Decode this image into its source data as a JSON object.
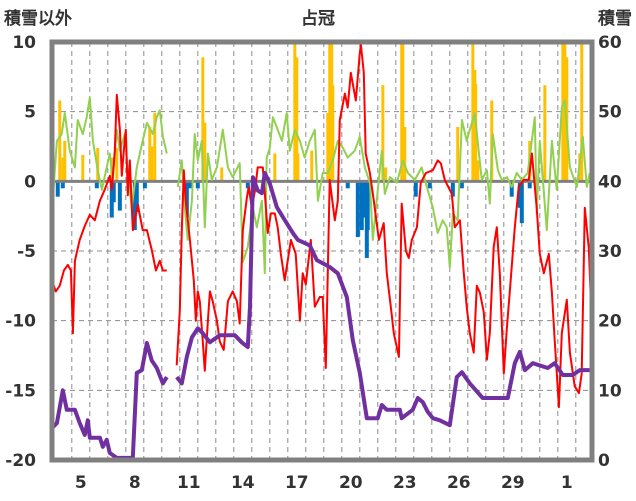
{
  "chart_data": {
    "type": "line",
    "title": "占冠",
    "ylabel": "積雪以外",
    "y2label": "積雪",
    "xlim": [
      3.4,
      33.4
    ],
    "ylim": [
      -20,
      10
    ],
    "y2lim": [
      0,
      60
    ],
    "grid": true,
    "y_ticks": [
      10,
      5,
      0,
      -5,
      -10,
      -15,
      -20
    ],
    "y2_ticks": [
      60,
      50,
      40,
      30,
      20,
      10,
      0
    ],
    "x_ticks": [
      {
        "day": 5,
        "label": "5"
      },
      {
        "day": 8,
        "label": "8"
      },
      {
        "day": 11,
        "label": "11"
      },
      {
        "day": 14,
        "label": "14"
      },
      {
        "day": 17,
        "label": "17"
      },
      {
        "day": 20,
        "label": "20"
      },
      {
        "day": 23,
        "label": "23"
      },
      {
        "day": 26,
        "label": "26"
      },
      {
        "day": 29,
        "label": "29"
      },
      {
        "day": 32,
        "label": "1"
      }
    ],
    "colors": {
      "red": "#FF0000",
      "green": "#92D050",
      "purple": "#7030A0",
      "orange": "#FFC000",
      "blue": "#0070C0",
      "frame": "#808080"
    },
    "bars_orange": [
      [
        3.83,
        5.8
      ],
      [
        4.0,
        1.7
      ],
      [
        4.11,
        2.9
      ],
      [
        5.11,
        1.9
      ],
      [
        5.94,
        2.4
      ],
      [
        6.72,
        1.7
      ],
      [
        7.0,
        2.4
      ],
      [
        8.83,
        3.9
      ],
      [
        8.94,
        2.5
      ],
      [
        9.11,
        4.9
      ],
      [
        11.78,
        8.9
      ],
      [
        11.89,
        4.2
      ],
      [
        12.83,
        1.0
      ],
      [
        15.78,
        2.0
      ],
      [
        16.89,
        9.9
      ],
      [
        17.0,
        8.9
      ],
      [
        17.06,
        2.0
      ],
      [
        17.83,
        2.2
      ],
      [
        18.72,
        4.9
      ],
      [
        18.83,
        9.9
      ],
      [
        18.94,
        9.9
      ],
      [
        19.0,
        6.9
      ],
      [
        21.78,
        6.9
      ],
      [
        21.94,
        1.0
      ],
      [
        22.83,
        9.9
      ],
      [
        22.89,
        9.9
      ],
      [
        23.0,
        3.9
      ],
      [
        25.94,
        3.9
      ],
      [
        26.78,
        9.9
      ],
      [
        26.89,
        8.0
      ],
      [
        26.94,
        7.0
      ],
      [
        27.06,
        1.5
      ],
      [
        27.83,
        5.8
      ],
      [
        29.94,
        2.9
      ],
      [
        30.78,
        6.9
      ],
      [
        31.78,
        9.9
      ],
      [
        31.89,
        9.9
      ],
      [
        32.0,
        8.9
      ],
      [
        32.72,
        2.0
      ],
      [
        32.83,
        9.9
      ]
    ],
    "bars_blue": [
      [
        3.72,
        -1.1
      ],
      [
        4.0,
        -0.5
      ],
      [
        5.89,
        -0.5
      ],
      [
        6.72,
        -2.6
      ],
      [
        6.83,
        -1.5
      ],
      [
        7.17,
        -2.1
      ],
      [
        8.0,
        -3.5
      ],
      [
        8.11,
        -2.2
      ],
      [
        8.56,
        -0.5
      ],
      [
        10.89,
        -2.6
      ],
      [
        11.06,
        -0.5
      ],
      [
        11.5,
        -0.5
      ],
      [
        14.28,
        -0.5
      ],
      [
        19.83,
        -0.5
      ],
      [
        20.39,
        -4.0
      ],
      [
        20.61,
        -3.5
      ],
      [
        20.72,
        -2.6
      ],
      [
        20.89,
        -5.5
      ],
      [
        20.94,
        -3.5
      ],
      [
        23.61,
        -1.1
      ],
      [
        24.39,
        -0.5
      ],
      [
        25.67,
        -1.1
      ],
      [
        26.17,
        -0.5
      ],
      [
        28.94,
        -1.1
      ],
      [
        29.39,
        -1.9
      ],
      [
        29.5,
        -3.0
      ],
      [
        29.94,
        -0.5
      ]
    ],
    "line_green": [
      [
        3.44,
        -1.4
      ],
      [
        3.67,
        2.9
      ],
      [
        3.94,
        3.4
      ],
      [
        4.11,
        4.9
      ],
      [
        4.39,
        2.2
      ],
      [
        4.67,
        1.0
      ],
      [
        4.83,
        4.4
      ],
      [
        5.11,
        3.4
      ],
      [
        5.33,
        4.6
      ],
      [
        5.5,
        6.0
      ],
      [
        5.67,
        2.9
      ],
      [
        5.94,
        0.8
      ],
      [
        6.17,
        -0.6
      ],
      [
        6.44,
        1.0
      ],
      [
        6.61,
        2.0
      ],
      [
        6.78,
        0.1
      ],
      [
        7.0,
        3.7
      ],
      [
        7.17,
        2.2
      ],
      [
        7.44,
        3.4
      ],
      [
        7.61,
        0.6
      ],
      [
        7.83,
        -1.9
      ],
      [
        8.11,
        1.0
      ],
      [
        8.28,
        2.0
      ],
      [
        8.67,
        4.2
      ],
      [
        9.0,
        3.4
      ],
      [
        9.22,
        4.6
      ],
      [
        9.39,
        5.1
      ],
      [
        9.56,
        3.2
      ],
      [
        9.78,
        2.0
      ],
      null,
      [
        10.39,
        -0.4
      ],
      [
        10.61,
        1.5
      ],
      [
        10.78,
        -1.9
      ],
      [
        10.94,
        -4.2
      ],
      [
        11.17,
        -1.4
      ],
      [
        11.33,
        3.4
      ],
      [
        11.5,
        1.5
      ],
      [
        11.72,
        2.9
      ],
      [
        11.89,
        -3.3
      ],
      [
        12.06,
        2.0
      ],
      [
        12.28,
        0.1
      ],
      [
        12.56,
        1.0
      ],
      [
        12.89,
        3.7
      ],
      [
        13.17,
        1.0
      ],
      [
        13.44,
        0.3
      ],
      [
        13.83,
        1.3
      ],
      [
        14.0,
        -5.8
      ],
      [
        14.28,
        -4.7
      ],
      [
        14.56,
        -1.9
      ],
      [
        14.78,
        -3.3
      ],
      [
        15.06,
        -1.4
      ],
      [
        15.22,
        -6.6
      ],
      [
        15.33,
        1.7
      ],
      [
        15.5,
        2.4
      ],
      [
        15.67,
        4.6
      ],
      [
        15.94,
        3.7
      ],
      [
        16.17,
        2.9
      ],
      [
        16.44,
        4.9
      ],
      [
        16.61,
        2.2
      ],
      [
        16.89,
        3.7
      ],
      [
        17.17,
        2.9
      ],
      [
        17.44,
        1.7
      ],
      [
        17.72,
        2.9
      ],
      [
        18.0,
        3.7
      ],
      [
        18.17,
        -1.4
      ],
      [
        18.44,
        0.6
      ],
      [
        18.72,
        0.6
      ],
      [
        19.0,
        1.5
      ],
      [
        19.28,
        2.9
      ],
      [
        19.56,
        2.4
      ],
      [
        19.83,
        1.7
      ],
      [
        20.22,
        2.2
      ],
      [
        20.5,
        3.2
      ],
      [
        20.78,
        1.0
      ],
      [
        21.06,
        -0.1
      ],
      [
        21.22,
        -4.2
      ],
      [
        21.44,
        -1.4
      ],
      [
        21.72,
        2.2
      ],
      [
        21.89,
        -0.9
      ],
      [
        22.17,
        0.3
      ],
      [
        22.56,
        -0.1
      ],
      [
        22.89,
        1.5
      ],
      [
        23.17,
        0.6
      ],
      [
        23.56,
        0.1
      ],
      [
        23.94,
        1.0
      ],
      [
        24.22,
        -0.4
      ],
      [
        24.56,
        -1.9
      ],
      [
        24.83,
        -3.7
      ],
      [
        25.11,
        -2.8
      ],
      [
        25.33,
        -3.3
      ],
      [
        25.5,
        -6.2
      ],
      [
        25.67,
        -2.3
      ],
      [
        25.94,
        -2.8
      ],
      [
        26.17,
        4.4
      ],
      [
        26.44,
        2.9
      ],
      [
        26.61,
        3.7
      ],
      [
        26.89,
        4.9
      ],
      [
        27.06,
        2.7
      ],
      [
        27.28,
        0.1
      ],
      [
        27.56,
        0.8
      ],
      [
        27.72,
        -1.6
      ],
      [
        27.89,
        3.4
      ],
      [
        28.17,
        0.8
      ],
      [
        28.39,
        0.1
      ],
      [
        28.67,
        0.3
      ],
      [
        28.94,
        -0.4
      ],
      [
        29.22,
        0.6
      ],
      [
        29.5,
        0.1
      ],
      [
        29.83,
        0.6
      ],
      [
        30.22,
        4.6
      ],
      [
        30.33,
        -2.3
      ],
      [
        30.5,
        2.9
      ],
      [
        30.89,
        -3.5
      ],
      [
        31.17,
        2.9
      ],
      [
        31.44,
        -0.6
      ],
      [
        31.72,
        5.3
      ],
      [
        31.89,
        5.8
      ],
      [
        32.17,
        1.0
      ],
      [
        32.56,
        -0.4
      ],
      [
        32.89,
        3.2
      ],
      [
        33.11,
        -0.4
      ],
      [
        33.28,
        0.6
      ]
    ],
    "line_red": [
      [
        3.39,
        -7.1
      ],
      [
        3.61,
        -7.9
      ],
      [
        3.83,
        -7.5
      ],
      [
        4.06,
        -6.4
      ],
      [
        4.28,
        -6.0
      ],
      [
        4.45,
        -6.4
      ],
      [
        4.56,
        -10.9
      ],
      [
        4.67,
        -5.7
      ],
      [
        4.94,
        -4.2
      ],
      [
        5.22,
        -3.2
      ],
      [
        5.5,
        -2.4
      ],
      [
        5.78,
        -2.8
      ],
      [
        6.06,
        -1.4
      ],
      [
        6.33,
        -0.6
      ],
      [
        6.61,
        0.4
      ],
      [
        6.72,
        -0.6
      ],
      [
        6.89,
        2.2
      ],
      [
        7.0,
        6.2
      ],
      [
        7.17,
        3.7
      ],
      [
        7.28,
        0.4
      ],
      [
        7.39,
        2.2
      ],
      [
        7.5,
        3.7
      ],
      [
        7.61,
        -1.0
      ],
      [
        7.72,
        1.5
      ],
      [
        7.89,
        -3.5
      ],
      [
        8.17,
        -1.7
      ],
      [
        8.44,
        -3.5
      ],
      [
        8.67,
        -3.5
      ],
      [
        8.94,
        -4.9
      ],
      [
        9.17,
        -6.4
      ],
      [
        9.39,
        -5.7
      ],
      [
        9.56,
        -6.4
      ],
      [
        9.78,
        -6.4
      ],
      null,
      [
        10.33,
        -13.2
      ],
      [
        10.5,
        -9.3
      ],
      [
        10.61,
        -3.5
      ],
      [
        10.72,
        0.8
      ],
      [
        10.83,
        -1.4
      ],
      [
        11.06,
        -4.2
      ],
      [
        11.28,
        -7.1
      ],
      [
        11.39,
        -10.0
      ],
      [
        11.5,
        -7.9
      ],
      [
        11.61,
        -8.6
      ],
      [
        11.78,
        -11.5
      ],
      [
        11.89,
        -13.6
      ],
      [
        12.06,
        -10.0
      ],
      [
        12.17,
        -7.9
      ],
      [
        12.33,
        -8.6
      ],
      [
        12.56,
        -10.0
      ],
      [
        12.72,
        -11.5
      ],
      [
        12.94,
        -12.1
      ],
      [
        13.17,
        -8.6
      ],
      [
        13.44,
        -7.9
      ],
      [
        13.67,
        -8.6
      ],
      [
        13.83,
        -10.2
      ],
      [
        14.0,
        -3.5
      ],
      [
        14.22,
        -1.2
      ],
      [
        14.33,
        -0.4
      ],
      [
        14.5,
        -1.9
      ],
      [
        14.67,
        -0.7
      ],
      [
        14.83,
        1.0
      ],
      [
        15.11,
        1.0
      ],
      [
        15.39,
        -3.7
      ],
      [
        15.56,
        -2.3
      ],
      [
        15.78,
        -2.3
      ],
      [
        15.94,
        -3.3
      ],
      [
        16.11,
        -5.2
      ],
      [
        16.33,
        -7.1
      ],
      [
        16.67,
        -4.2
      ],
      [
        16.94,
        -5.2
      ],
      [
        17.17,
        -10.0
      ],
      [
        17.33,
        -6.6
      ],
      [
        17.5,
        -7.4
      ],
      [
        17.78,
        -4.2
      ],
      [
        18.0,
        -9.0
      ],
      [
        18.28,
        -8.3
      ],
      [
        18.44,
        -8.3
      ],
      [
        18.61,
        -13.4
      ],
      [
        18.83,
        0.1
      ],
      [
        19.11,
        -2.8
      ],
      [
        19.28,
        -1.4
      ],
      [
        19.39,
        4.4
      ],
      [
        19.67,
        6.3
      ],
      [
        19.83,
        5.3
      ],
      [
        20.0,
        7.8
      ],
      [
        20.28,
        5.8
      ],
      [
        20.5,
        9.2
      ],
      [
        20.56,
        9.8
      ],
      [
        20.72,
        7.8
      ],
      [
        20.83,
        2.0
      ],
      [
        21.06,
        0.6
      ],
      [
        21.28,
        -1.4
      ],
      [
        21.56,
        -4.2
      ],
      [
        21.83,
        -3.0
      ],
      [
        22.0,
        -6.6
      ],
      [
        22.22,
        -9.0
      ],
      [
        22.39,
        -10.9
      ],
      [
        22.67,
        -12.6
      ],
      [
        22.83,
        -1.6
      ],
      [
        23.06,
        -5.0
      ],
      [
        23.22,
        -5.5
      ],
      [
        23.39,
        -4.2
      ],
      [
        23.67,
        -3.3
      ],
      [
        23.89,
        -0.1
      ],
      [
        24.17,
        0.6
      ],
      [
        24.56,
        0.8
      ],
      [
        24.83,
        1.5
      ],
      [
        25.0,
        1.3
      ],
      [
        25.22,
        0.1
      ],
      [
        25.61,
        -0.9
      ],
      [
        25.78,
        -3.3
      ],
      [
        26.06,
        -2.8
      ],
      [
        26.28,
        -6.6
      ],
      [
        26.44,
        -9.0
      ],
      [
        26.61,
        -10.9
      ],
      [
        26.83,
        -12.3
      ],
      [
        27.0,
        -7.5
      ],
      [
        27.17,
        -8.0
      ],
      [
        27.39,
        -9.4
      ],
      [
        27.56,
        -12.8
      ],
      [
        27.72,
        -10.9
      ],
      [
        27.94,
        -4.7
      ],
      [
        28.11,
        -3.3
      ],
      [
        28.28,
        -6.6
      ],
      [
        28.5,
        -13.8
      ],
      [
        28.67,
        -10.5
      ],
      [
        28.83,
        -8.0
      ],
      [
        29.11,
        -3.3
      ],
      [
        29.33,
        -0.4
      ],
      [
        29.61,
        0.1
      ],
      [
        29.89,
        0.1
      ],
      [
        30.06,
        2.0
      ],
      [
        30.33,
        -1.9
      ],
      [
        30.5,
        -5.2
      ],
      [
        30.72,
        -6.6
      ],
      [
        31.0,
        -5.2
      ],
      [
        31.17,
        -8.0
      ],
      [
        31.33,
        -11.4
      ],
      [
        31.56,
        -16.2
      ],
      [
        31.72,
        -10.9
      ],
      [
        32.0,
        -8.5
      ],
      [
        32.17,
        -12.3
      ],
      [
        32.44,
        -14.7
      ],
      [
        32.67,
        -15.2
      ],
      [
        32.83,
        -13.8
      ],
      [
        33.0,
        -1.9
      ],
      [
        33.22,
        -4.8
      ],
      [
        33.39,
        -10.3
      ]
    ],
    "line_purple_right_axis": [
      [
        3.44,
        4.7
      ],
      [
        3.67,
        5.3
      ],
      [
        4.0,
        10.0
      ],
      [
        4.22,
        7.2
      ],
      [
        4.67,
        7.2
      ],
      [
        4.94,
        5.3
      ],
      [
        5.22,
        3.6
      ],
      [
        5.39,
        5.7
      ],
      [
        5.5,
        3.2
      ],
      [
        6.06,
        3.2
      ],
      [
        6.22,
        1.9
      ],
      [
        6.44,
        2.9
      ],
      [
        6.61,
        1.0
      ],
      [
        7.0,
        0.3
      ],
      [
        7.89,
        0.3
      ],
      [
        8.11,
        12.5
      ],
      [
        8.39,
        12.9
      ],
      [
        8.67,
        16.8
      ],
      [
        8.94,
        14.3
      ],
      [
        9.22,
        13.2
      ],
      [
        9.56,
        11.0
      ],
      [
        9.78,
        11.9
      ],
      null,
      [
        10.33,
        11.9
      ],
      [
        10.61,
        11.0
      ],
      [
        10.89,
        14.8
      ],
      [
        11.17,
        17.6
      ],
      [
        11.5,
        18.9
      ],
      [
        11.78,
        18.2
      ],
      [
        12.17,
        16.9
      ],
      [
        12.72,
        17.9
      ],
      [
        13.56,
        17.9
      ],
      [
        13.94,
        16.9
      ],
      [
        14.28,
        16.2
      ],
      [
        14.4,
        22.0
      ],
      [
        14.56,
        40.6
      ],
      [
        14.83,
        38.7
      ],
      [
        15.06,
        38.3
      ],
      [
        15.22,
        41.2
      ],
      [
        15.5,
        39.7
      ],
      [
        15.89,
        36.3
      ],
      [
        16.22,
        34.9
      ],
      [
        16.78,
        32.6
      ],
      [
        17.06,
        31.6
      ],
      [
        17.72,
        30.8
      ],
      [
        18.11,
        28.7
      ],
      [
        18.83,
        27.7
      ],
      [
        19.28,
        26.8
      ],
      [
        19.78,
        23.4
      ],
      [
        20.11,
        17.2
      ],
      [
        20.5,
        12.5
      ],
      [
        20.89,
        6.0
      ],
      [
        21.5,
        6.0
      ],
      [
        21.72,
        7.9
      ],
      [
        22.0,
        7.2
      ],
      [
        22.72,
        7.2
      ],
      [
        22.83,
        6.0
      ],
      [
        23.44,
        7.2
      ],
      [
        23.72,
        8.9
      ],
      [
        24.0,
        8.3
      ],
      [
        24.28,
        6.9
      ],
      [
        24.56,
        6.0
      ],
      [
        24.94,
        5.7
      ],
      [
        25.5,
        5.0
      ],
      [
        25.89,
        11.9
      ],
      [
        26.17,
        12.6
      ],
      [
        26.61,
        11.0
      ],
      [
        27.33,
        8.9
      ],
      [
        28.72,
        8.9
      ],
      [
        29.11,
        13.9
      ],
      [
        29.39,
        15.5
      ],
      [
        29.67,
        12.9
      ],
      [
        30.11,
        13.9
      ],
      [
        30.94,
        13.2
      ],
      [
        31.33,
        13.9
      ],
      [
        31.78,
        12.2
      ],
      [
        32.33,
        12.2
      ],
      [
        32.72,
        12.9
      ],
      [
        33.28,
        12.9
      ]
    ]
  }
}
